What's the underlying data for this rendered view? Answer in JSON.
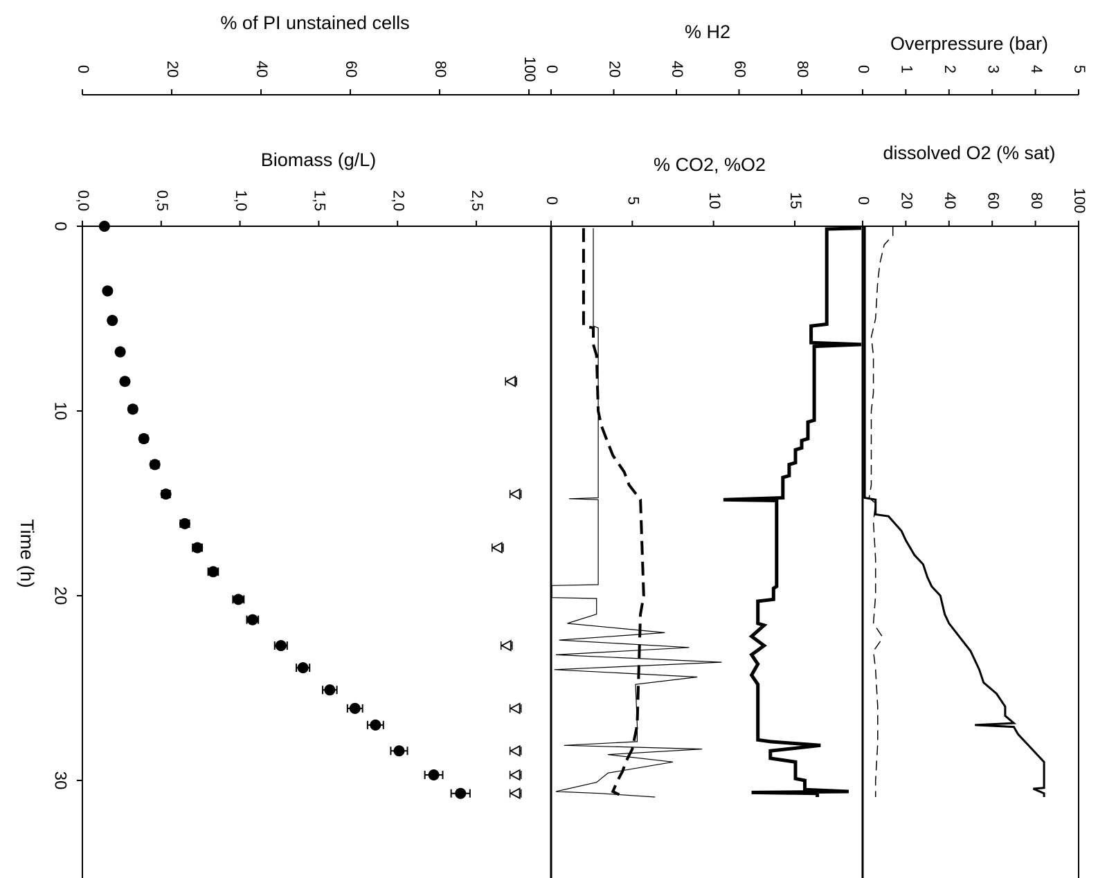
{
  "chart_data": {
    "type": "line",
    "orientation": "rotated-90",
    "time_axis": {
      "label": "Time (h)",
      "range": [
        0,
        35
      ],
      "ticks": [
        0,
        10,
        20,
        30
      ]
    },
    "panels": [
      {
        "id": "biomass-panel",
        "top_axis": {
          "label": "% of PI unstained cells",
          "range": [
            0,
            100
          ],
          "ticks": [
            "0",
            "20",
            "40",
            "60",
            "80",
            "100"
          ]
        },
        "bottom_axis": {
          "label": "Biomass (g/L)",
          "range": [
            0,
            3
          ],
          "ticks": [
            "0,0",
            "0,5",
            "1,0",
            "1,5",
            "2,0",
            "2,5"
          ]
        },
        "series": [
          {
            "style": "filled-circle-with-errorbar",
            "axis": "biomass",
            "points": [
              [
                0.0,
                0.14
              ],
              [
                3.5,
                0.16
              ],
              [
                5.1,
                0.19
              ],
              [
                6.8,
                0.24
              ],
              [
                8.4,
                0.27
              ],
              [
                9.9,
                0.32
              ],
              [
                11.5,
                0.39
              ],
              [
                12.9,
                0.46
              ],
              [
                14.5,
                0.53
              ],
              [
                16.1,
                0.65
              ],
              [
                17.4,
                0.73
              ],
              [
                18.7,
                0.83
              ],
              [
                20.2,
                0.99
              ],
              [
                21.3,
                1.08
              ],
              [
                22.7,
                1.26
              ],
              [
                23.9,
                1.4
              ],
              [
                25.1,
                1.57
              ],
              [
                26.1,
                1.73
              ],
              [
                27.0,
                1.86
              ],
              [
                28.4,
                2.01
              ],
              [
                29.7,
                2.23
              ],
              [
                30.7,
                2.4
              ]
            ]
          },
          {
            "style": "open-triangle-with-errorbar",
            "axis": "pi",
            "points": [
              [
                8.4,
                96
              ],
              [
                14.5,
                97
              ],
              [
                17.4,
                93
              ],
              [
                22.7,
                95
              ],
              [
                26.1,
                97
              ],
              [
                28.4,
                97
              ],
              [
                29.7,
                97
              ],
              [
                30.7,
                97
              ]
            ]
          }
        ]
      },
      {
        "id": "gas-panel",
        "top_axis": {
          "label": "% H2",
          "range": [
            0,
            100
          ],
          "ticks": [
            "0",
            "20",
            "40",
            "60",
            "80"
          ]
        },
        "bottom_axis": {
          "label": "% CO2, %O2",
          "range": [
            0,
            19
          ],
          "ticks": [
            "0",
            "5",
            "10",
            "15"
          ]
        },
        "series": [
          {
            "style": "thick-solid",
            "axis": "h2",
            "points": [
              [
                0.1,
                99
              ],
              [
                0.15,
                88
              ],
              [
                5.3,
                88
              ],
              [
                5.4,
                83
              ],
              [
                6.3,
                83
              ],
              [
                6.4,
                99
              ],
              [
                6.5,
                84
              ],
              [
                10.5,
                84
              ],
              [
                10.6,
                82
              ],
              [
                11.5,
                82
              ],
              [
                11.6,
                80
              ],
              [
                12.0,
                80
              ],
              [
                12.1,
                78
              ],
              [
                12.8,
                78
              ],
              [
                12.9,
                76
              ],
              [
                13.5,
                76
              ],
              [
                13.6,
                74
              ],
              [
                14.7,
                74
              ],
              [
                14.8,
                55
              ],
              [
                14.85,
                72
              ],
              [
                19.5,
                72
              ],
              [
                19.6,
                71
              ],
              [
                20.2,
                71
              ],
              [
                20.3,
                66
              ],
              [
                21.5,
                66
              ],
              [
                21.6,
                68
              ],
              [
                22.2,
                64
              ],
              [
                22.7,
                68
              ],
              [
                23.2,
                64
              ],
              [
                23.7,
                66
              ],
              [
                24.3,
                64
              ],
              [
                24.8,
                66
              ],
              [
                27.8,
                66
              ],
              [
                27.9,
                70
              ],
              [
                28.1,
                86
              ],
              [
                28.4,
                70
              ],
              [
                28.8,
                70
              ],
              [
                29.0,
                78
              ],
              [
                29.9,
                78
              ],
              [
                30.0,
                81
              ],
              [
                30.5,
                81
              ],
              [
                30.6,
                95
              ],
              [
                30.65,
                64
              ],
              [
                30.7,
                85
              ],
              [
                30.9,
                85
              ]
            ]
          },
          {
            "style": "dashed",
            "axis": "co2o2",
            "points": [
              [
                0.1,
                2.0
              ],
              [
                5.4,
                2.0
              ],
              [
                5.5,
                2.6
              ],
              [
                6.4,
                2.6
              ],
              [
                7.0,
                2.8
              ],
              [
                10.0,
                2.9
              ],
              [
                10.8,
                3.1
              ],
              [
                11.5,
                3.4
              ],
              [
                12.4,
                3.8
              ],
              [
                13.3,
                4.5
              ],
              [
                14.0,
                4.8
              ],
              [
                14.8,
                5.5
              ],
              [
                20.0,
                5.7
              ],
              [
                21.0,
                5.5
              ],
              [
                24.0,
                5.4
              ],
              [
                27.0,
                5.3
              ],
              [
                28.3,
                5.0
              ],
              [
                29.0,
                4.6
              ],
              [
                29.5,
                4.4
              ],
              [
                30.0,
                4.1
              ],
              [
                30.6,
                3.8
              ],
              [
                30.9,
                4.5
              ]
            ]
          },
          {
            "style": "thin-solid",
            "axis": "co2o2",
            "points": [
              [
                0.1,
                2.6
              ],
              [
                5.4,
                2.6
              ],
              [
                5.5,
                2.9
              ],
              [
                14.7,
                2.9
              ],
              [
                14.75,
                1.1
              ],
              [
                14.8,
                2.9
              ],
              [
                19.4,
                2.9
              ],
              [
                19.45,
                0.05
              ],
              [
                20.1,
                0.05
              ],
              [
                20.15,
                2.8
              ],
              [
                21.0,
                2.8
              ],
              [
                21.5,
                1.0
              ],
              [
                22.0,
                7.0
              ],
              [
                22.4,
                0.5
              ],
              [
                22.8,
                8.5
              ],
              [
                23.2,
                0.3
              ],
              [
                23.6,
                10.5
              ],
              [
                24.0,
                0.2
              ],
              [
                24.4,
                9.0
              ],
              [
                24.8,
                5.2
              ],
              [
                27.0,
                5.3
              ],
              [
                27.9,
                5.3
              ],
              [
                28.1,
                0.8
              ],
              [
                28.3,
                9.3
              ],
              [
                28.6,
                3.5
              ],
              [
                29.0,
                7.5
              ],
              [
                29.6,
                3.5
              ],
              [
                30.1,
                2.8
              ],
              [
                30.6,
                0.3
              ],
              [
                30.7,
                3.0
              ],
              [
                30.9,
                6.4
              ]
            ]
          }
        ]
      },
      {
        "id": "overpressure-panel",
        "top_axis": {
          "label": "Overpressure (bar)",
          "range": [
            0,
            5
          ],
          "ticks": [
            "0",
            "1",
            "2",
            "3",
            "4",
            "5"
          ]
        },
        "bottom_axis": {
          "label": "dissolved O2 (% sat)",
          "range": [
            0,
            100
          ],
          "ticks": [
            "0",
            "20",
            "40",
            "60",
            "80",
            "100"
          ]
        },
        "series": [
          {
            "style": "solid",
            "axis": "overpressure",
            "points": [
              [
                0.0,
                0.05
              ],
              [
                14.7,
                0.05
              ],
              [
                14.8,
                0.3
              ],
              [
                15.6,
                0.3
              ],
              [
                15.7,
                0.6
              ],
              [
                16.5,
                0.9
              ],
              [
                17.0,
                1.0
              ],
              [
                17.8,
                1.2
              ],
              [
                18.3,
                1.4
              ],
              [
                19.0,
                1.5
              ],
              [
                19.5,
                1.6
              ],
              [
                20.0,
                1.8
              ],
              [
                21.0,
                1.9
              ],
              [
                21.5,
                2.0
              ],
              [
                22.4,
                2.3
              ],
              [
                23.0,
                2.5
              ],
              [
                24.0,
                2.7
              ],
              [
                24.7,
                2.8
              ],
              [
                25.3,
                3.1
              ],
              [
                26.0,
                3.3
              ],
              [
                26.5,
                3.3
              ],
              [
                26.9,
                3.5
              ],
              [
                27.0,
                2.6
              ],
              [
                27.1,
                3.5
              ],
              [
                27.5,
                3.6
              ],
              [
                28.0,
                3.8
              ],
              [
                28.5,
                4.0
              ],
              [
                29.0,
                4.2
              ],
              [
                30.4,
                4.2
              ],
              [
                30.45,
                3.95
              ],
              [
                30.7,
                4.2
              ],
              [
                30.9,
                4.2
              ]
            ]
          },
          {
            "style": "dashed-thin",
            "axis": "do2",
            "points": [
              [
                0.0,
                14
              ],
              [
                0.5,
                14
              ],
              [
                1.0,
                10
              ],
              [
                2.0,
                8
              ],
              [
                3.0,
                7
              ],
              [
                5.0,
                6
              ],
              [
                6.0,
                4
              ],
              [
                7.0,
                5
              ],
              [
                9.0,
                5
              ],
              [
                10.0,
                4
              ],
              [
                12.0,
                4
              ],
              [
                14.0,
                4
              ],
              [
                14.7,
                3
              ],
              [
                15.0,
                6
              ],
              [
                16.0,
                5
              ],
              [
                18.0,
                6
              ],
              [
                20.0,
                6
              ],
              [
                21.5,
                5
              ],
              [
                22.2,
                9
              ],
              [
                22.5,
                8
              ],
              [
                23.0,
                5
              ],
              [
                24.0,
                6
              ],
              [
                26.0,
                7
              ],
              [
                28.0,
                7
              ],
              [
                30.0,
                6
              ],
              [
                30.9,
                6
              ]
            ]
          }
        ]
      }
    ]
  }
}
